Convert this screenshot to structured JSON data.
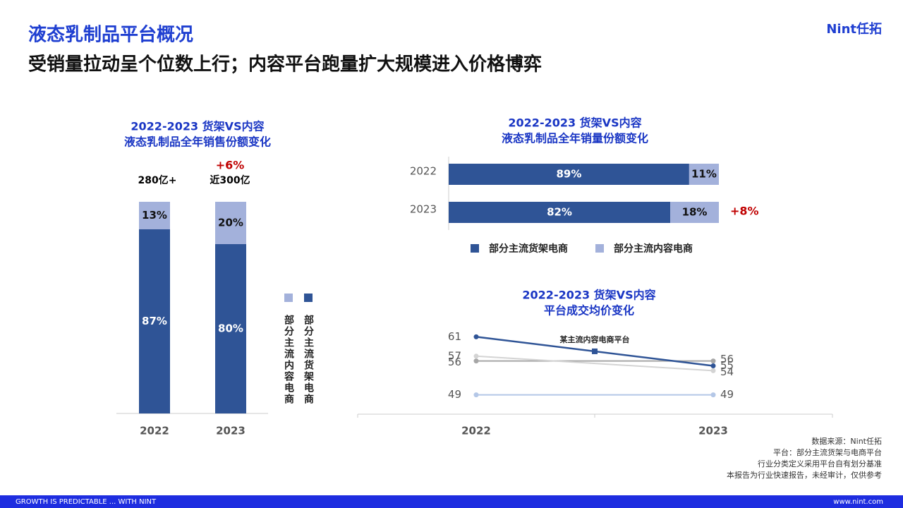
{
  "header": {
    "title": "液态乳制品平台概况",
    "subtitle": "受销量拉动呈个位数上行；内容平台跑量扩大规模进入价格博弈",
    "logo": "Nint任拓"
  },
  "chart_data": [
    {
      "type": "bar",
      "orientation": "vertical",
      "stacked": true,
      "title": [
        "2022-2023 货架VS内容",
        "液态乳制品全年销售份额变化"
      ],
      "categories": [
        "2022",
        "2023"
      ],
      "series": [
        {
          "name": "部分主流货架电商",
          "color": "#2f5496",
          "values": [
            87,
            80
          ],
          "value_labels": [
            "87%",
            "80%"
          ]
        },
        {
          "name": "部分主流内容电商",
          "color": "#a3b1db",
          "values": [
            13,
            20
          ],
          "value_labels": [
            "13%",
            "20%"
          ]
        }
      ],
      "ylim": [
        0,
        100
      ],
      "annotations": [
        "280亿+",
        "近300亿",
        "+6%"
      ]
    },
    {
      "type": "bar",
      "orientation": "horizontal",
      "stacked": true,
      "title": [
        "2022-2023 货架VS内容",
        "液态乳制品全年销量份额变化"
      ],
      "categories": [
        "2022",
        "2023"
      ],
      "series": [
        {
          "name": "部分主流货架电商",
          "color": "#2f5496",
          "values": [
            89,
            82
          ],
          "value_labels": [
            "89%",
            "82%"
          ]
        },
        {
          "name": "部分主流内容电商",
          "color": "#a3b1db",
          "values": [
            11,
            18
          ],
          "value_labels": [
            "11%",
            "18%"
          ]
        }
      ],
      "xlim": [
        0,
        100
      ],
      "annotations": [
        "+8%"
      ]
    },
    {
      "type": "line",
      "title": [
        "2022-2023 货架VS内容",
        "平台成交均价变化"
      ],
      "categories": [
        "2022",
        "2023"
      ],
      "series": [
        {
          "name": "某主流内容电商平台",
          "color": "#2f5496",
          "values": [
            61,
            55
          ]
        },
        {
          "color": "#d4d4d4",
          "values": [
            57,
            54
          ]
        },
        {
          "color": "#a6a6a6",
          "values": [
            56,
            56
          ]
        },
        {
          "color": "#b4c7e7",
          "values": [
            49,
            49
          ]
        }
      ],
      "ylim": [
        45,
        65
      ]
    }
  ],
  "notes": [
    "数据来源：Nint任拓",
    "平台：部分主流货架与电商平台",
    "行业分类定义采用平台自有划分基准",
    "本报告为行业快速报告，未经审计，仅供参考"
  ],
  "footer": {
    "left": "GROWTH IS PREDICTABLE ... WITH NINT",
    "right": "www.nint.com"
  }
}
